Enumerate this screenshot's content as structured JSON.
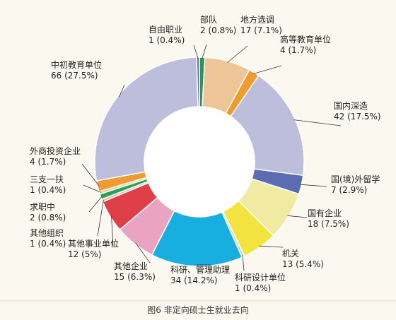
{
  "caption": "图6  非定向硕士生就业去向",
  "chart_data": {
    "type": "pie",
    "donut": true,
    "slices": [
      {
        "name": "部队",
        "value": 2,
        "pct": "0.8%",
        "color": "#1f9a4f"
      },
      {
        "name": "地方选调",
        "value": 17,
        "pct": "7.1%",
        "color": "#edc597"
      },
      {
        "name": "高等教育单位",
        "value": 4,
        "pct": "1.7%",
        "color": "#f09b2d"
      },
      {
        "name": "国内深造",
        "value": 42,
        "pct": "17.5%",
        "color": "#bcbedb"
      },
      {
        "name": "国(境)外留学",
        "value": 7,
        "pct": "2.9%",
        "color": "#5a6db2"
      },
      {
        "name": "国有企业",
        "value": 18,
        "pct": "7.5%",
        "color": "#f1eaa3"
      },
      {
        "name": "机关",
        "value": 13,
        "pct": "5.4%",
        "color": "#f2e33e"
      },
      {
        "name": "科研设计单位",
        "value": 1,
        "pct": "0.4%",
        "color": "#b7dcea"
      },
      {
        "name": "科研、管理助理",
        "value": 34,
        "pct": "14.2%",
        "color": "#19aee0"
      },
      {
        "name": "其他企业",
        "value": 15,
        "pct": "6.3%",
        "color": "#eaa3c3"
      },
      {
        "name": "其他事业单位",
        "value": 12,
        "pct": "5%",
        "color": "#df4048"
      },
      {
        "name": "其他组织",
        "value": 1,
        "pct": "0.4%",
        "color": "#f0b5b5"
      },
      {
        "name": "求职中",
        "value": 2,
        "pct": "0.8%",
        "color": "#27a352"
      },
      {
        "name": "三支一扶",
        "value": 1,
        "pct": "0.4%",
        "color": "#f2c6a2"
      },
      {
        "name": "外商投资企业",
        "value": 4,
        "pct": "1.7%",
        "color": "#f09b2d"
      },
      {
        "name": "中初教育单位",
        "value": 66,
        "pct": "27.5%",
        "color": "#bcbedb"
      },
      {
        "name": "自由职业",
        "value": 1,
        "pct": "0.4%",
        "color": "#5a6db2"
      }
    ]
  }
}
